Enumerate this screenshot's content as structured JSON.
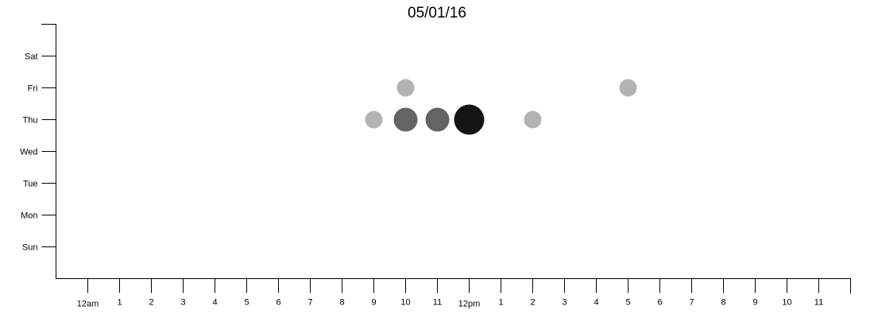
{
  "chart_data": {
    "type": "scatter",
    "title": "05/01/16",
    "xlabel": "",
    "ylabel": "",
    "x_categories": [
      "12am",
      "1",
      "2",
      "3",
      "4",
      "5",
      "6",
      "7",
      "8",
      "9",
      "10",
      "11",
      "12pm",
      "1",
      "2",
      "3",
      "4",
      "5",
      "6",
      "7",
      "8",
      "9",
      "10",
      "11"
    ],
    "y_categories": [
      "Sun",
      "Mon",
      "Tue",
      "Wed",
      "Thu",
      "Fri",
      "Sat"
    ],
    "grid": false,
    "legend": "none",
    "series": [
      {
        "points": [
          {
            "hour": 10,
            "day": "Fri",
            "count": 1
          },
          {
            "hour": 17,
            "day": "Fri",
            "count": 1
          },
          {
            "hour": 9,
            "day": "Thu",
            "count": 1
          },
          {
            "hour": 10,
            "day": "Thu",
            "count": 3
          },
          {
            "hour": 11,
            "day": "Thu",
            "count": 3
          },
          {
            "hour": 12,
            "day": "Thu",
            "count": 5
          },
          {
            "hour": 14,
            "day": "Thu",
            "count": 1
          }
        ]
      }
    ],
    "colors": {
      "low": "#b3b3b3",
      "high": "#141414"
    }
  }
}
